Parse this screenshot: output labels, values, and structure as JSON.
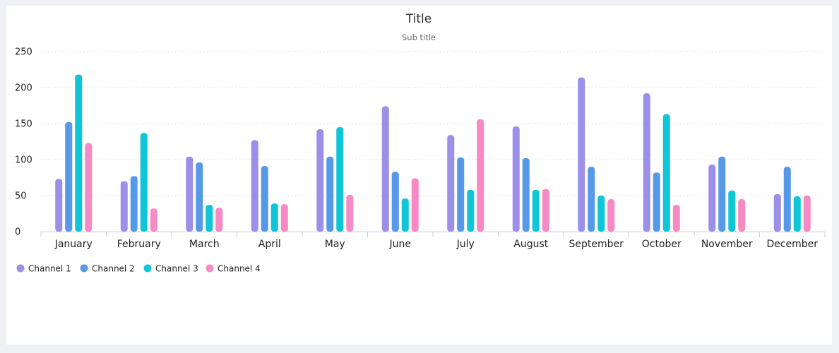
{
  "chart_data": {
    "type": "bar",
    "title": "Title",
    "subtitle": "Sub title",
    "categories": [
      "January",
      "February",
      "March",
      "April",
      "May",
      "June",
      "July",
      "August",
      "September",
      "October",
      "November",
      "December"
    ],
    "series": [
      {
        "name": "Channel 1",
        "color": "#9c8fe8",
        "values": [
          73,
          70,
          104,
          127,
          142,
          174,
          134,
          146,
          214,
          192,
          93,
          52
        ]
      },
      {
        "name": "Channel 2",
        "color": "#5599e8",
        "values": [
          152,
          77,
          96,
          91,
          104,
          83,
          103,
          102,
          90,
          82,
          104,
          90
        ]
      },
      {
        "name": "Channel 3",
        "color": "#0ec6d8",
        "values": [
          218,
          137,
          37,
          39,
          145,
          46,
          58,
          58,
          50,
          163,
          57,
          49
        ]
      },
      {
        "name": "Channel 4",
        "color": "#f68ac4",
        "values": [
          123,
          32,
          33,
          38,
          51,
          74,
          156,
          59,
          45,
          37,
          45,
          50
        ]
      }
    ],
    "yticks": [
      0,
      50,
      100,
      150,
      200,
      250
    ],
    "ylim": [
      0,
      250
    ],
    "grid": "horizontal-dotted",
    "legend_position": "bottom-left"
  }
}
